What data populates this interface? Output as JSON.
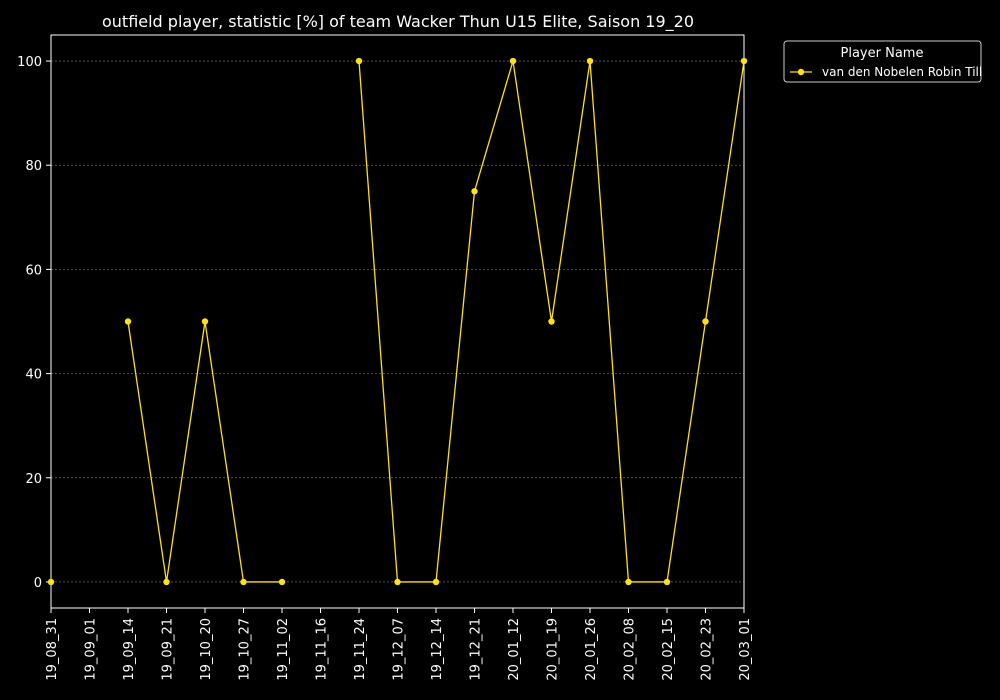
{
  "chart_data": {
    "type": "line",
    "title": "outfield player, statistic [%] of team Wacker Thun U15 Elite, Saison 19_20",
    "xlabel": "",
    "ylabel": "",
    "categories": [
      "19_08_31",
      "19_09_01",
      "19_09_14",
      "19_09_21",
      "19_10_20",
      "19_10_27",
      "19_11_02",
      "19_11_16",
      "19_11_24",
      "19_12_07",
      "19_12_14",
      "19_12_21",
      "20_01_12",
      "20_01_19",
      "20_01_26",
      "20_02_08",
      "20_02_15",
      "20_02_23",
      "20_03_01"
    ],
    "series": [
      {
        "name": "van den Nobelen Robin Till",
        "values": [
          0,
          null,
          50,
          0,
          50,
          0,
          0,
          null,
          100,
          0,
          0,
          75,
          100,
          50,
          100,
          0,
          0,
          50,
          100
        ]
      }
    ],
    "ylim": [
      -5,
      105
    ],
    "yticks": [
      0,
      20,
      40,
      60,
      80,
      100
    ],
    "grid": true,
    "legend": {
      "title": "Player Name",
      "placement": "outside-top-right"
    },
    "colors": {
      "background": "#000000",
      "series": "#ffe119",
      "grid": "#808080",
      "axis": "#ffffff"
    }
  }
}
